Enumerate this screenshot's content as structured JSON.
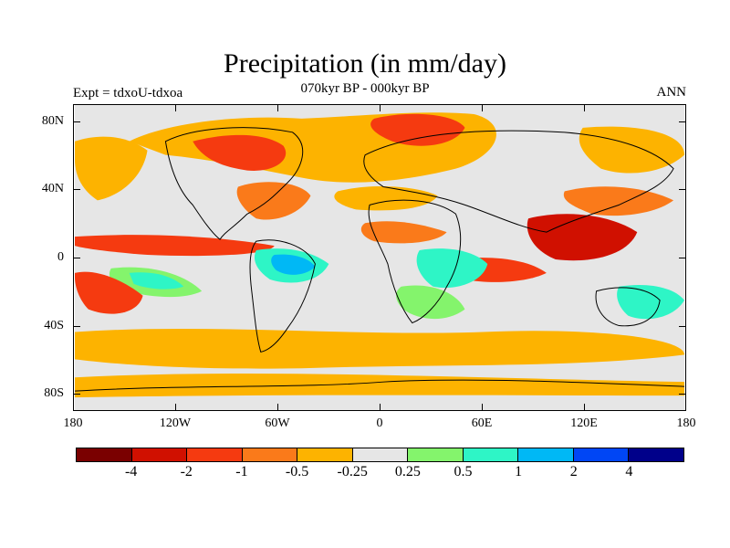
{
  "title": "Precipitation (in mm/day)",
  "subtitle": "070kyr BP - 000kyr BP",
  "experiment_label": "Expt = tdxoU-tdxoa",
  "season_label": "ANN",
  "lat_labels": [
    "80N",
    "40N",
    "0",
    "40S",
    "80S"
  ],
  "lon_labels": [
    "180",
    "120W",
    "60W",
    "0",
    "60E",
    "120E",
    "180"
  ],
  "colorbar": {
    "colors": [
      "#7a0000",
      "#d01000",
      "#f53a10",
      "#fa7a1a",
      "#fdb300",
      "#e6e6e6",
      "#84f46c",
      "#2ef5c6",
      "#00b8f5",
      "#0046f5",
      "#00008a"
    ],
    "labels": [
      "-4",
      "-2",
      "-1",
      "-0.5",
      "-0.25",
      "0.25",
      "0.5",
      "1",
      "2",
      "4"
    ]
  },
  "map_colors": {
    "background": "#e6e6e6",
    "coastline": "#000000"
  }
}
